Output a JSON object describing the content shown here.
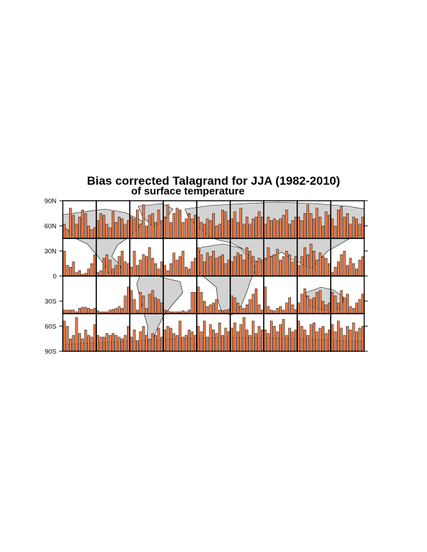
{
  "chart_data": {
    "type": "bar",
    "title": "Bias corrected Talagrand for JJA (1982-2010)",
    "subtitle": "of surface temperature",
    "ylabel_ticks": [
      "90N",
      "60N",
      "30N",
      "0",
      "30S",
      "60S",
      "90S"
    ],
    "colors": {
      "bar": "#F07E4A",
      "land": "#D3D3D3",
      "frame": "#000000"
    },
    "panel_rows": [
      [
        {
          "values": [
            40,
            25,
            85,
            65,
            40,
            60,
            80,
            70,
            35,
            25,
            30
          ]
        },
        {
          "values": [
            50,
            70,
            65,
            40,
            30,
            75,
            45,
            60,
            55,
            40,
            50
          ]
        },
        {
          "values": [
            60,
            55,
            80,
            40,
            95,
            35,
            65,
            70,
            45,
            80,
            50
          ]
        },
        {
          "values": [
            60,
            95,
            45,
            70,
            85,
            80,
            45,
            55,
            70,
            55,
            65
          ]
        },
        {
          "values": [
            60,
            45,
            40,
            55,
            50,
            70,
            35,
            40,
            80,
            75,
            50
          ]
        },
        {
          "values": [
            55,
            75,
            45,
            85,
            40,
            60,
            40,
            55,
            60,
            75,
            60
          ]
        },
        {
          "values": [
            40,
            60,
            50,
            55,
            50,
            55,
            65,
            80,
            40,
            50,
            60
          ]
        },
        {
          "values": [
            60,
            50,
            70,
            95,
            70,
            55,
            85,
            60,
            35,
            75,
            65
          ]
        },
        {
          "values": [
            55,
            35,
            80,
            90,
            60,
            70,
            40,
            60,
            55,
            40,
            60
          ]
        }
      ],
      [
        {
          "values": [
            70,
            30,
            25,
            40,
            10,
            15,
            5,
            8,
            20,
            35,
            60
          ]
        },
        {
          "values": [
            10,
            15,
            50,
            60,
            45,
            20,
            30,
            55,
            70,
            40,
            35
          ]
        },
        {
          "values": [
            25,
            70,
            30,
            45,
            60,
            55,
            80,
            50,
            35,
            20,
            40
          ]
        },
        {
          "values": [
            30,
            15,
            35,
            65,
            45,
            55,
            70,
            25,
            20,
            40,
            50
          ]
        },
        {
          "values": [
            80,
            60,
            40,
            65,
            55,
            70,
            50,
            55,
            60,
            35,
            45
          ]
        },
        {
          "values": [
            40,
            55,
            65,
            60,
            45,
            80,
            70,
            55,
            40,
            50,
            45
          ]
        },
        {
          "values": [
            50,
            80,
            55,
            60,
            75,
            45,
            55,
            70,
            60,
            40,
            55
          ]
        },
        {
          "values": [
            30,
            55,
            80,
            60,
            90,
            70,
            45,
            65,
            55,
            50,
            35
          ]
        },
        {
          "values": [
            10,
            25,
            40,
            60,
            70,
            30,
            50,
            35,
            20,
            45,
            55
          ]
        }
      ],
      [
        {
          "values": [
            10,
            10,
            10,
            10,
            5,
            15,
            18,
            18,
            15,
            12,
            15
          ]
        },
        {
          "values": [
            8,
            5,
            5,
            5,
            10,
            12,
            15,
            20,
            15,
            50,
            75
          ]
        },
        {
          "values": [
            65,
            40,
            10,
            60,
            50,
            15,
            55,
            65,
            45,
            40,
            30
          ]
        },
        {
          "values": [
            10,
            8,
            5,
            5,
            5,
            5,
            8,
            5,
            10,
            60,
            60
          ]
        },
        {
          "values": [
            75,
            60,
            35,
            20,
            25,
            30,
            40,
            10,
            8,
            10,
            12
          ]
        },
        {
          "values": [
            50,
            45,
            30,
            20,
            15,
            25,
            40,
            55,
            70,
            25,
            10
          ]
        },
        {
          "values": [
            75,
            20,
            10,
            8,
            15,
            20,
            10,
            30,
            45,
            25,
            12
          ]
        },
        {
          "values": [
            30,
            55,
            70,
            50,
            40,
            45,
            60,
            65,
            35,
            25,
            30
          ]
        },
        {
          "values": [
            60,
            50,
            30,
            65,
            45,
            55,
            20,
            15,
            30,
            40,
            55
          ]
        }
      ],
      [
        {
          "values": [
            85,
            70,
            35,
            45,
            95,
            50,
            35,
            60,
            45,
            40,
            75
          ]
        },
        {
          "values": [
            45,
            40,
            40,
            50,
            45,
            50,
            45,
            40,
            35,
            45,
            70
          ]
        },
        {
          "values": [
            40,
            60,
            30,
            55,
            70,
            45,
            35,
            50,
            45,
            65,
            40
          ]
        },
        {
          "values": [
            60,
            70,
            65,
            50,
            45,
            85,
            40,
            45,
            60,
            55,
            45
          ]
        },
        {
          "values": [
            70,
            55,
            85,
            40,
            75,
            60,
            50,
            80,
            45,
            65,
            55
          ]
        },
        {
          "values": [
            65,
            80,
            55,
            75,
            95,
            60,
            45,
            85,
            50,
            70,
            60
          ]
        },
        {
          "values": [
            60,
            50,
            85,
            70,
            55,
            75,
            90,
            45,
            65,
            55,
            60
          ]
        },
        {
          "values": [
            85,
            70,
            60,
            45,
            75,
            80,
            55,
            65,
            70,
            50,
            60
          ]
        },
        {
          "values": [
            75,
            55,
            85,
            65,
            45,
            70,
            60,
            80,
            55,
            65,
            70
          ]
        }
      ]
    ]
  }
}
